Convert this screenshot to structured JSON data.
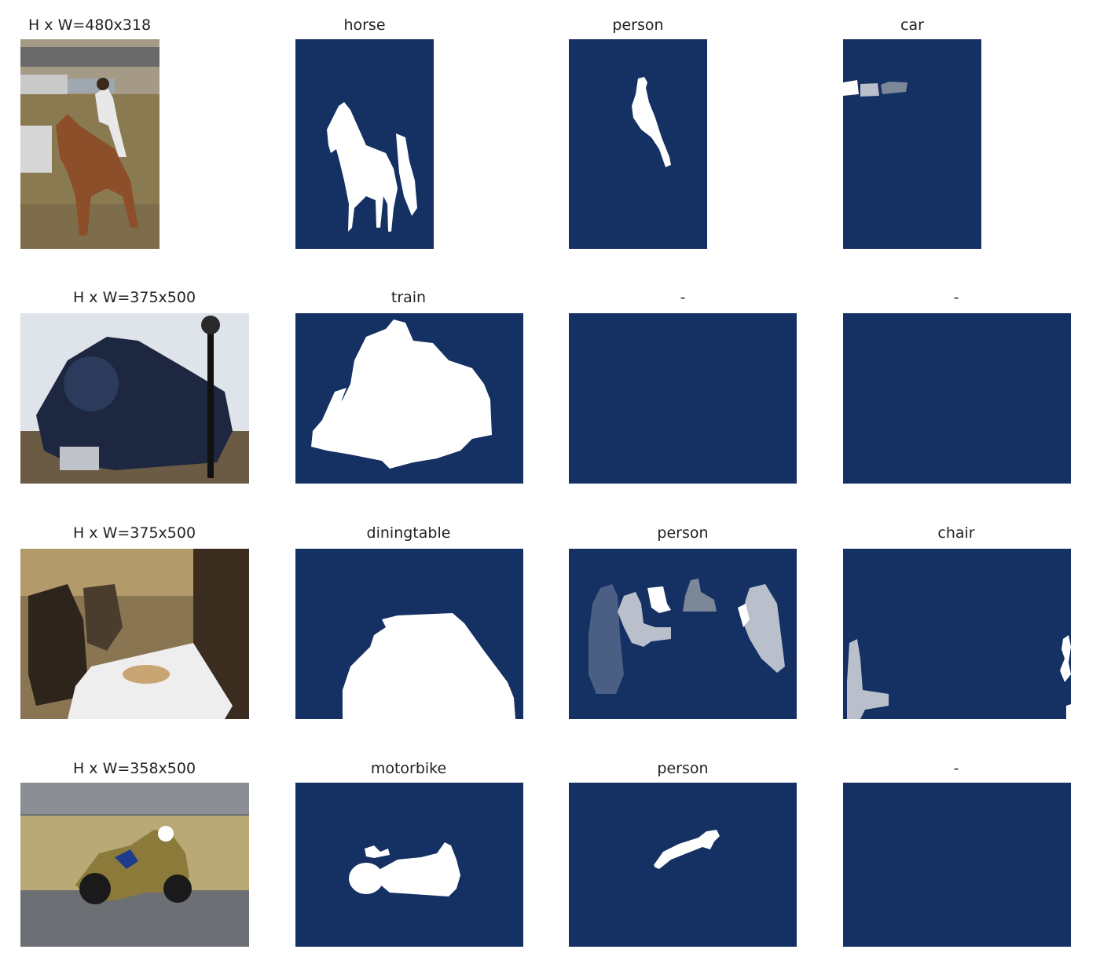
{
  "colors": {
    "mask_background": "#153163",
    "mask_foreground": "#ffffff",
    "mask_light_gray": "#b9c0cc",
    "mask_mid_gray": "#9aa3b2",
    "mask_dark_gray": "#7c8797",
    "mask_slate": "#4b5f84",
    "title_text": "#222222"
  },
  "rows": [
    {
      "photo_title": "H x W=480x318",
      "photo_subject": "rider on horse",
      "masks": [
        {
          "label": "horse",
          "icon": "horse-silhouette"
        },
        {
          "label": "person",
          "icon": "person-silhouette"
        },
        {
          "label": "car",
          "icon": "car-silhouettes"
        }
      ]
    },
    {
      "photo_title": "H x W=375x500",
      "photo_subject": "steam locomotive",
      "masks": [
        {
          "label": "train",
          "icon": "train-silhouette"
        },
        {
          "label": "-",
          "icon": "empty-mask"
        },
        {
          "label": "-",
          "icon": "empty-mask"
        }
      ]
    },
    {
      "photo_title": "H x W=375x500",
      "photo_subject": "people at dining table",
      "masks": [
        {
          "label": "diningtable",
          "icon": "table-silhouette"
        },
        {
          "label": "person",
          "icon": "people-silhouettes"
        },
        {
          "label": "chair",
          "icon": "chair-silhouettes"
        }
      ]
    },
    {
      "photo_title": "H x W=358x500",
      "photo_subject": "motorbike racer",
      "masks": [
        {
          "label": "motorbike",
          "icon": "motorbike-silhouette"
        },
        {
          "label": "person",
          "icon": "rider-silhouette"
        },
        {
          "label": "-",
          "icon": "empty-mask"
        }
      ]
    }
  ]
}
